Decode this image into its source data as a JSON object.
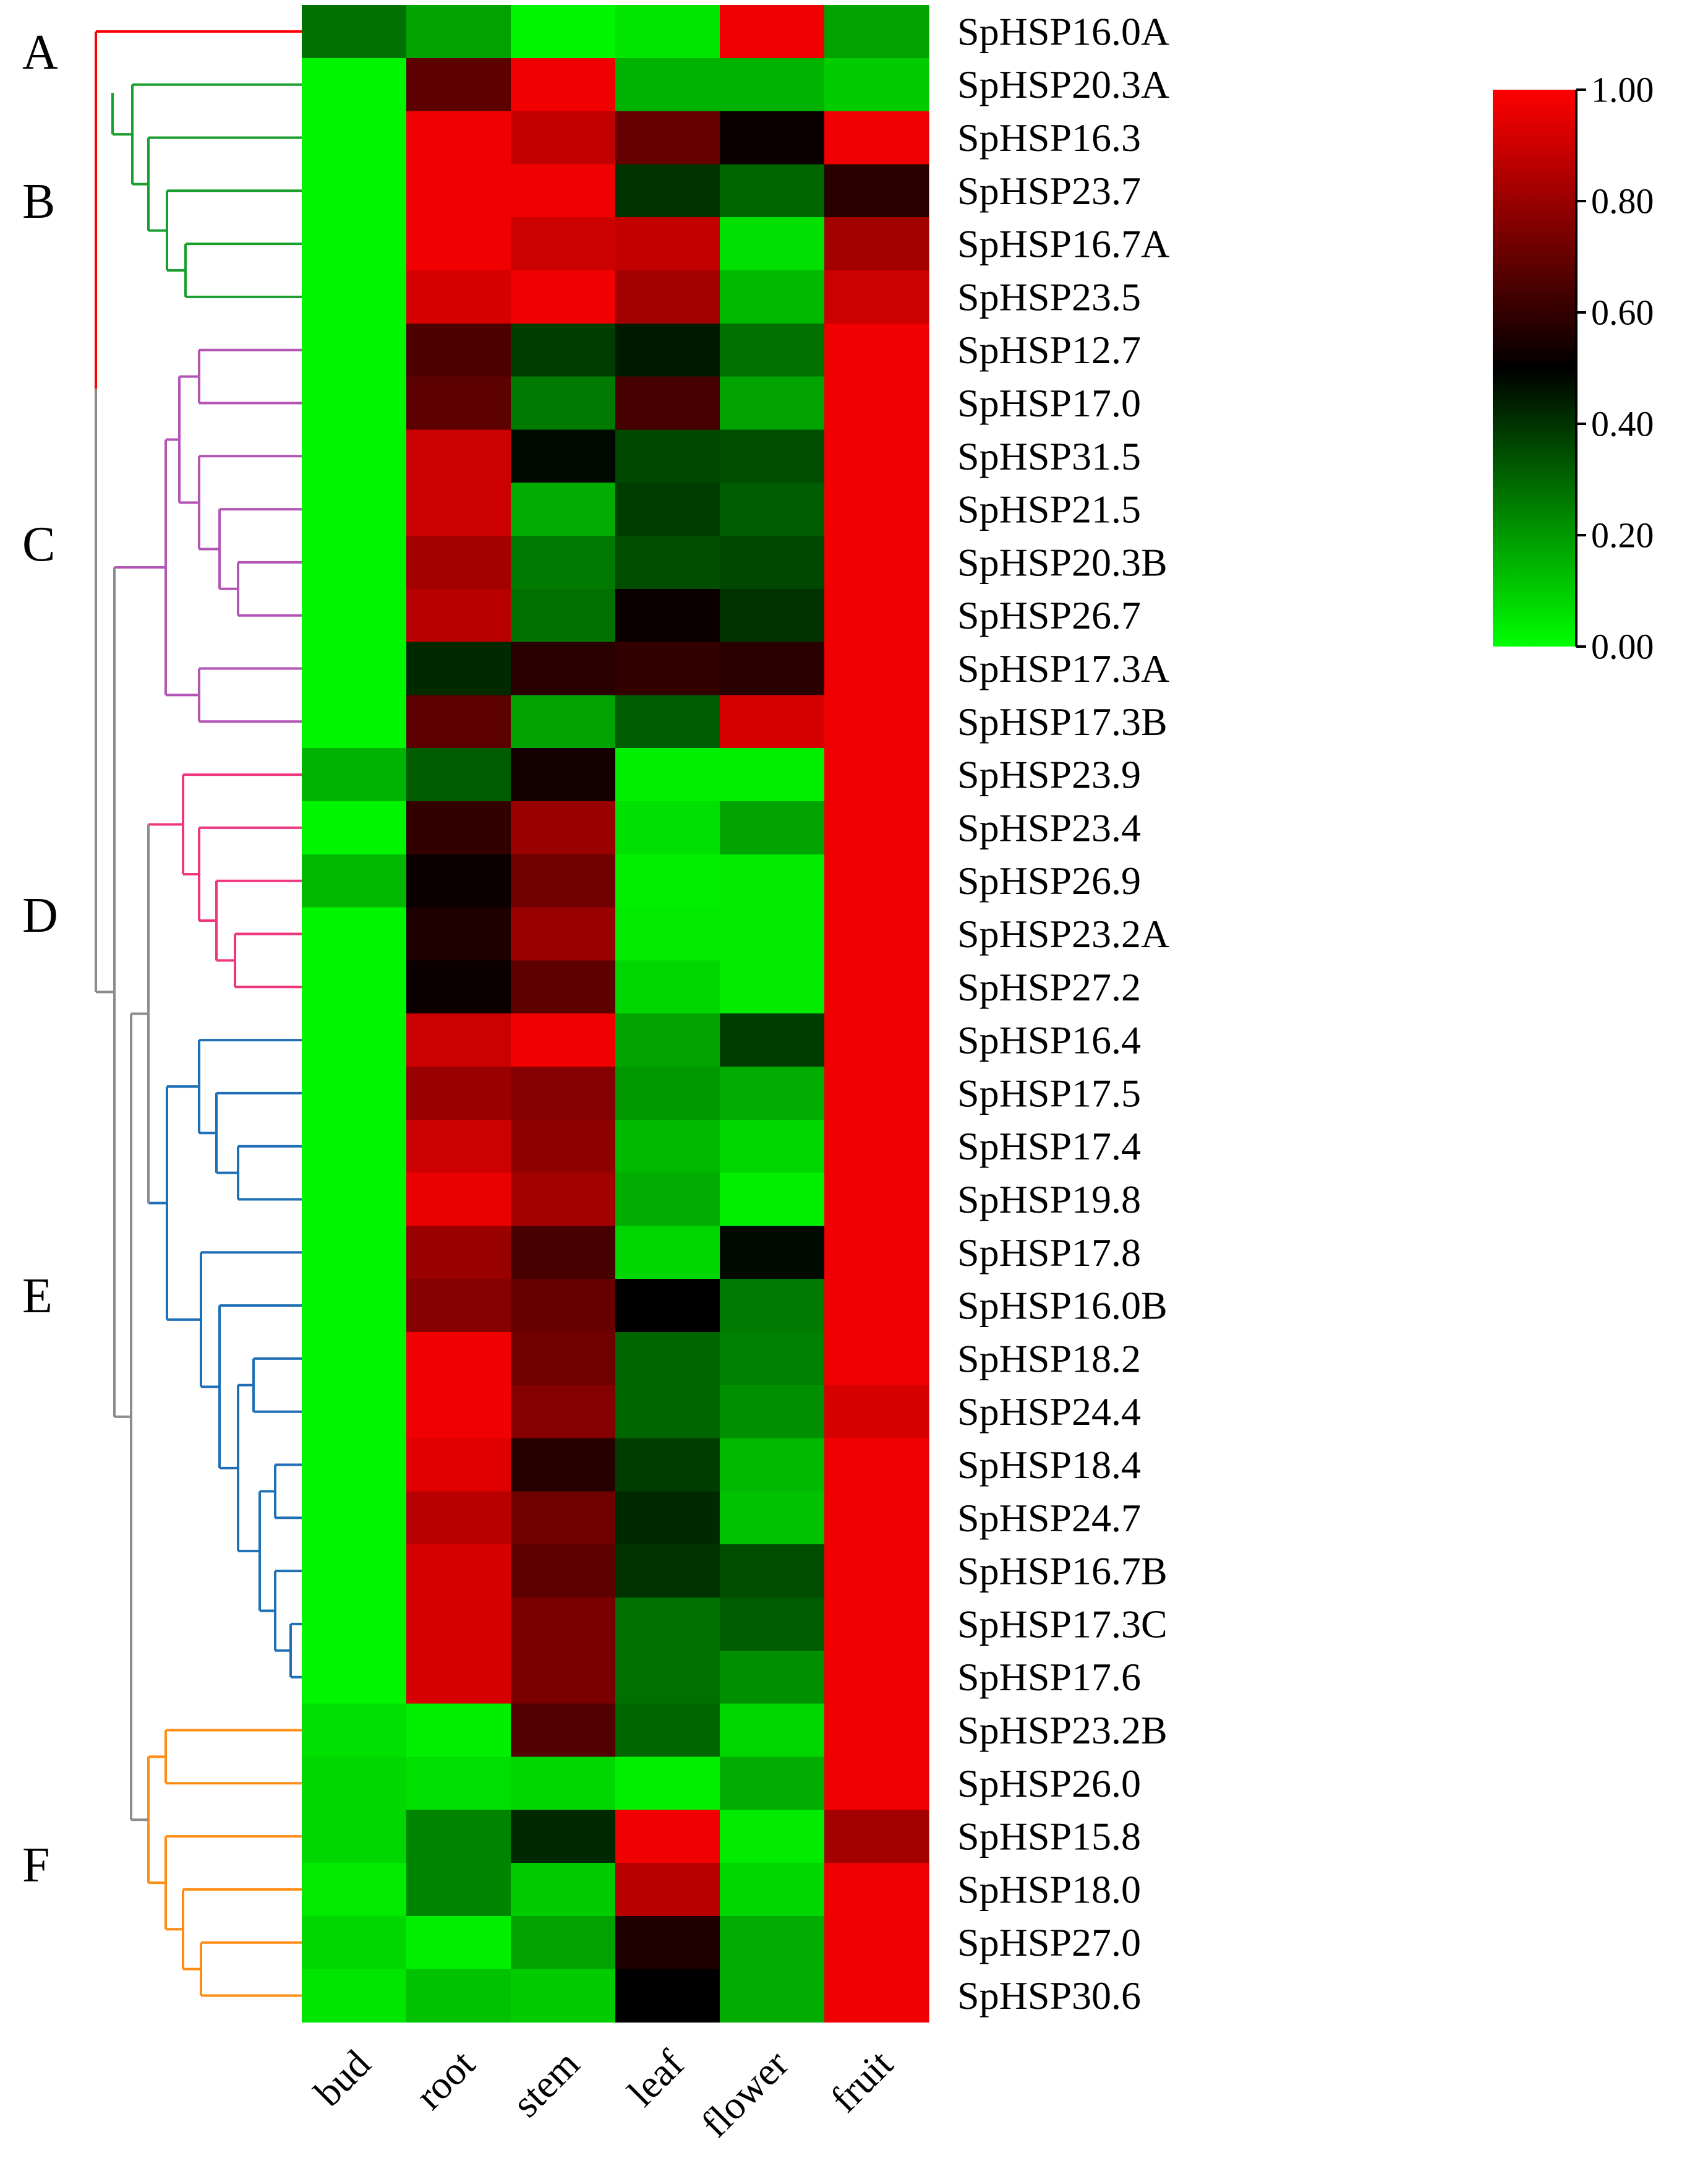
{
  "chart_data": {
    "type": "heatmap",
    "title": "",
    "xlabel": "",
    "ylabel": "",
    "columns": [
      "bud",
      "root",
      "stem",
      "leaf",
      "flower",
      "fruit"
    ],
    "rows": [
      "SpHSP16.0A",
      "SpHSP20.3A",
      "SpHSP16.3",
      "SpHSP23.7",
      "SpHSP16.7A",
      "SpHSP23.5",
      "SpHSP12.7",
      "SpHSP17.0",
      "SpHSP31.5",
      "SpHSP21.5",
      "SpHSP20.3B",
      "SpHSP26.7",
      "SpHSP17.3A",
      "SpHSP17.3B",
      "SpHSP23.9",
      "SpHSP23.4",
      "SpHSP26.9",
      "SpHSP23.2A",
      "SpHSP27.2",
      "SpHSP16.4",
      "SpHSP17.5",
      "SpHSP17.4",
      "SpHSP19.8",
      "SpHSP17.8",
      "SpHSP16.0B",
      "SpHSP18.2",
      "SpHSP24.4",
      "SpHSP18.4",
      "SpHSP24.7",
      "SpHSP16.7B",
      "SpHSP17.3C",
      "SpHSP17.6",
      "SpHSP23.2B",
      "SpHSP26.0",
      "SpHSP15.8",
      "SpHSP18.0",
      "SpHSP27.0",
      "SpHSP30.6"
    ],
    "values": [
      [
        0.28,
        0.18,
        0.02,
        0.05,
        0.97,
        0.18
      ],
      [
        0.02,
        0.68,
        0.97,
        0.15,
        0.15,
        0.1
      ],
      [
        0.02,
        0.97,
        0.88,
        0.7,
        0.52,
        0.97
      ],
      [
        0.02,
        0.97,
        0.97,
        0.4,
        0.3,
        0.58
      ],
      [
        0.02,
        0.97,
        0.9,
        0.88,
        0.06,
        0.82
      ],
      [
        0.02,
        0.92,
        0.97,
        0.82,
        0.14,
        0.9
      ],
      [
        0.02,
        0.65,
        0.38,
        0.45,
        0.28,
        0.97
      ],
      [
        0.02,
        0.68,
        0.26,
        0.64,
        0.18,
        0.97
      ],
      [
        0.02,
        0.9,
        0.48,
        0.36,
        0.35,
        0.97
      ],
      [
        0.02,
        0.9,
        0.16,
        0.38,
        0.32,
        0.97
      ],
      [
        0.02,
        0.82,
        0.26,
        0.35,
        0.36,
        0.97
      ],
      [
        0.02,
        0.86,
        0.28,
        0.52,
        0.4,
        0.97
      ],
      [
        0.02,
        0.42,
        0.58,
        0.6,
        0.58,
        0.97
      ],
      [
        0.02,
        0.68,
        0.18,
        0.32,
        0.92,
        0.97
      ],
      [
        0.15,
        0.32,
        0.54,
        0.03,
        0.03,
        0.97
      ],
      [
        0.02,
        0.6,
        0.8,
        0.06,
        0.18,
        0.97
      ],
      [
        0.14,
        0.52,
        0.72,
        0.03,
        0.04,
        0.97
      ],
      [
        0.02,
        0.56,
        0.8,
        0.04,
        0.04,
        0.97
      ],
      [
        0.02,
        0.52,
        0.68,
        0.08,
        0.04,
        0.97
      ],
      [
        0.02,
        0.9,
        0.97,
        0.18,
        0.38,
        0.97
      ],
      [
        0.02,
        0.8,
        0.76,
        0.2,
        0.16,
        0.97
      ],
      [
        0.02,
        0.9,
        0.78,
        0.14,
        0.08,
        0.97
      ],
      [
        0.02,
        0.96,
        0.82,
        0.16,
        0.03,
        0.97
      ],
      [
        0.02,
        0.8,
        0.64,
        0.08,
        0.48,
        0.97
      ],
      [
        0.02,
        0.76,
        0.7,
        0.5,
        0.26,
        0.97
      ],
      [
        0.02,
        0.97,
        0.72,
        0.3,
        0.25,
        0.97
      ],
      [
        0.02,
        0.97,
        0.76,
        0.3,
        0.22,
        0.92
      ],
      [
        0.02,
        0.94,
        0.57,
        0.38,
        0.14,
        0.97
      ],
      [
        0.02,
        0.86,
        0.72,
        0.42,
        0.12,
        0.97
      ],
      [
        0.02,
        0.92,
        0.68,
        0.4,
        0.35,
        0.97
      ],
      [
        0.02,
        0.92,
        0.74,
        0.28,
        0.32,
        0.97
      ],
      [
        0.02,
        0.92,
        0.74,
        0.28,
        0.22,
        0.97
      ],
      [
        0.06,
        0.03,
        0.66,
        0.3,
        0.08,
        0.97
      ],
      [
        0.08,
        0.06,
        0.08,
        0.03,
        0.16,
        0.97
      ],
      [
        0.08,
        0.24,
        0.42,
        0.97,
        0.04,
        0.82
      ],
      [
        0.04,
        0.24,
        0.1,
        0.86,
        0.08,
        0.97
      ],
      [
        0.08,
        0.03,
        0.18,
        0.56,
        0.16,
        0.97
      ],
      [
        0.05,
        0.12,
        0.1,
        0.5,
        0.16,
        0.97
      ]
    ],
    "clades": [
      {
        "label": "A",
        "color": "#ff0000"
      },
      {
        "label": "B",
        "color": "#1a9e2e"
      },
      {
        "label": "C",
        "color": "#b255b5"
      },
      {
        "label": "D",
        "color": "#f0357f"
      },
      {
        "label": "E",
        "color": "#1e6fb6"
      },
      {
        "label": "F",
        "color": "#ff8c14"
      }
    ],
    "trunk_color": "#8c8c8c",
    "colorscale": {
      "min": 0.0,
      "max": 1.0,
      "low_color": "#00ff00",
      "mid_color": "#000000",
      "high_color": "#ff0000",
      "ticks": [
        "0.00",
        "0.20",
        "0.40",
        "0.60",
        "0.80",
        "1.00"
      ]
    }
  }
}
